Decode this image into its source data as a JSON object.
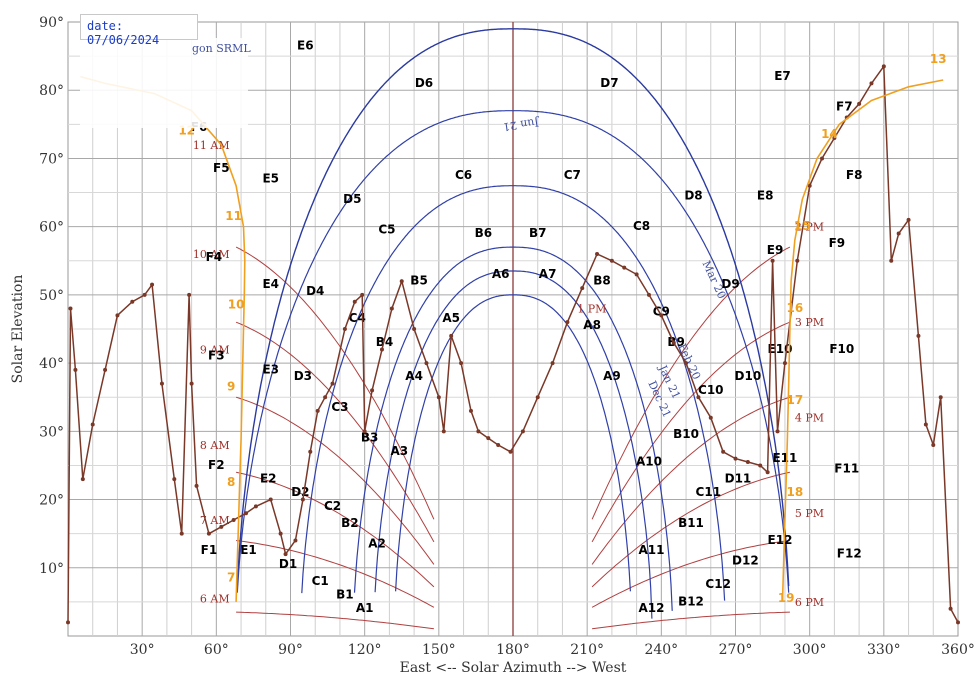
{
  "chart_data": {
    "type": "line",
    "title": "",
    "xlabel": "East <-- Solar Azimuth --> West",
    "ylabel": "Solar Elevation",
    "xlim": [
      0,
      360
    ],
    "ylim": [
      0,
      90
    ],
    "x_ticks": [
      "30°",
      "60°",
      "90°",
      "120°",
      "150°",
      "180°",
      "210°",
      "240°",
      "270°",
      "300°",
      "330°",
      "360°"
    ],
    "y_ticks": [
      "10°",
      "20°",
      "30°",
      "40°",
      "50°",
      "60°",
      "70°",
      "80°",
      "90°"
    ],
    "grid": true,
    "date_label": "date: 07/06/2024",
    "legend_fragment": "gon SRML",
    "sun_paths": [
      {
        "label": "Jun 21",
        "max_elevation": 77
      },
      {
        "label": "Mar 20",
        "max_elevation": 66
      },
      {
        "label": "Feb 20",
        "max_elevation": 57
      },
      {
        "label": "Jan 21",
        "max_elevation": 53.5
      },
      {
        "label": "Dec 21",
        "max_elevation": 50
      }
    ],
    "hour_labels_am": [
      "6 AM",
      "7 AM",
      "8 AM",
      "9 AM",
      "10 AM",
      "11 AM"
    ],
    "hour_labels_pm": [
      "1 PM",
      "2 PM",
      "3 PM",
      "4 PM",
      "5 PM",
      "6 PM"
    ],
    "sun_hours": [
      "7",
      "8",
      "9",
      "10",
      "11",
      "12",
      "13",
      "14",
      "15",
      "16",
      "17",
      "18",
      "19"
    ],
    "sun_track_points": [
      [
        68,
        5
      ],
      [
        68.5,
        11
      ],
      [
        69,
        17
      ],
      [
        69.5,
        23
      ],
      [
        70,
        29
      ],
      [
        70.5,
        37
      ],
      [
        71,
        45
      ],
      [
        71.3,
        50
      ],
      [
        71.5,
        55
      ],
      [
        71,
        60
      ],
      [
        68,
        66
      ],
      [
        62,
        72
      ],
      [
        50,
        77
      ],
      [
        35,
        79.5
      ],
      [
        15,
        81
      ],
      [
        5,
        82
      ],
      [
        289,
        5
      ],
      [
        289.5,
        11
      ],
      [
        290,
        17
      ],
      [
        290.5,
        23
      ],
      [
        291,
        29
      ],
      [
        291.5,
        37
      ],
      [
        292,
        45
      ],
      [
        292.5,
        52
      ],
      [
        294,
        58
      ],
      [
        297,
        64
      ],
      [
        303,
        70
      ],
      [
        312,
        75
      ],
      [
        325,
        78.5
      ],
      [
        340,
        80.5
      ],
      [
        354,
        81.5
      ]
    ],
    "horizon_profile": [
      [
        0,
        2
      ],
      [
        1,
        48
      ],
      [
        3,
        39
      ],
      [
        6,
        23
      ],
      [
        10,
        31
      ],
      [
        15,
        39
      ],
      [
        20,
        47
      ],
      [
        26,
        49
      ],
      [
        31,
        50
      ],
      [
        34,
        51.5
      ],
      [
        38,
        37
      ],
      [
        43,
        23
      ],
      [
        46,
        15
      ],
      [
        49,
        50
      ],
      [
        50,
        37
      ],
      [
        52,
        22
      ],
      [
        57,
        15
      ],
      [
        62,
        16
      ],
      [
        67,
        17
      ],
      [
        72,
        18
      ],
      [
        76,
        19
      ],
      [
        82,
        20
      ],
      [
        86,
        15
      ],
      [
        88,
        12
      ],
      [
        92,
        14
      ],
      [
        95,
        20
      ],
      [
        98,
        27
      ],
      [
        101,
        33
      ],
      [
        104,
        35
      ],
      [
        107,
        37
      ],
      [
        112,
        45
      ],
      [
        116,
        49
      ],
      [
        119,
        50
      ],
      [
        120,
        30
      ],
      [
        123,
        36
      ],
      [
        127,
        42
      ],
      [
        131,
        48
      ],
      [
        135,
        52
      ],
      [
        140,
        45
      ],
      [
        145,
        40
      ],
      [
        150,
        35
      ],
      [
        152,
        30
      ],
      [
        155,
        44
      ],
      [
        159,
        40
      ],
      [
        163,
        33
      ],
      [
        166,
        30
      ],
      [
        170,
        29
      ],
      [
        174,
        28
      ],
      [
        179,
        27
      ],
      [
        184,
        30
      ],
      [
        190,
        35
      ],
      [
        196,
        40
      ],
      [
        202,
        46
      ],
      [
        208,
        51
      ],
      [
        214,
        56
      ],
      [
        220,
        55
      ],
      [
        225,
        54
      ],
      [
        230,
        53
      ],
      [
        235,
        50
      ],
      [
        240,
        47
      ],
      [
        245,
        43
      ],
      [
        250,
        40
      ],
      [
        255,
        35
      ],
      [
        260,
        32
      ],
      [
        265,
        27
      ],
      [
        270,
        26
      ],
      [
        275,
        25.5
      ],
      [
        280,
        25
      ],
      [
        283,
        24
      ],
      [
        285,
        55
      ],
      [
        287,
        30
      ],
      [
        290,
        40
      ],
      [
        295,
        55
      ],
      [
        300,
        66
      ],
      [
        305,
        70
      ],
      [
        310,
        73
      ],
      [
        315,
        76
      ],
      [
        320,
        78
      ],
      [
        325,
        81
      ],
      [
        330,
        83.5
      ],
      [
        333,
        55
      ],
      [
        336,
        59
      ],
      [
        340,
        61
      ],
      [
        344,
        44
      ],
      [
        347,
        31
      ],
      [
        350,
        28
      ],
      [
        353,
        35
      ],
      [
        357,
        4
      ],
      [
        360,
        2
      ]
    ]
  },
  "zones": [
    {
      "label": "E6",
      "az": 96,
      "el": 86
    },
    {
      "label": "E7",
      "az": 289,
      "el": 81.5
    },
    {
      "label": "D6",
      "az": 144,
      "el": 80.5
    },
    {
      "label": "D7",
      "az": 219,
      "el": 80.5
    },
    {
      "label": "F6",
      "az": 53,
      "el": 74
    },
    {
      "label": "F7",
      "az": 314,
      "el": 77
    },
    {
      "label": "F5",
      "az": 62,
      "el": 68
    },
    {
      "label": "E5",
      "az": 82,
      "el": 66.5
    },
    {
      "label": "C6",
      "az": 160,
      "el": 67
    },
    {
      "label": "C7",
      "az": 204,
      "el": 67
    },
    {
      "label": "F8",
      "az": 318,
      "el": 67
    },
    {
      "label": "D5",
      "az": 115,
      "el": 63.5
    },
    {
      "label": "D8",
      "az": 253,
      "el": 64
    },
    {
      "label": "E8",
      "az": 282,
      "el": 64
    },
    {
      "label": "C5",
      "az": 129,
      "el": 59
    },
    {
      "label": "B6",
      "az": 168,
      "el": 58.5
    },
    {
      "label": "B7",
      "az": 190,
      "el": 58.5
    },
    {
      "label": "C8",
      "az": 232,
      "el": 59.5
    },
    {
      "label": "F4",
      "az": 59,
      "el": 55
    },
    {
      "label": "E9",
      "az": 286,
      "el": 56
    },
    {
      "label": "F9",
      "az": 311,
      "el": 57
    },
    {
      "label": "A6",
      "az": 175,
      "el": 52.5
    },
    {
      "label": "A7",
      "az": 194,
      "el": 52.5
    },
    {
      "label": "B8",
      "az": 216,
      "el": 51.5
    },
    {
      "label": "E4",
      "az": 82,
      "el": 51
    },
    {
      "label": "B5",
      "az": 142,
      "el": 51.5
    },
    {
      "label": "D9",
      "az": 268,
      "el": 51
    },
    {
      "label": "D4",
      "az": 100,
      "el": 50
    },
    {
      "label": "C4",
      "az": 117,
      "el": 46
    },
    {
      "label": "A5",
      "az": 155,
      "el": 46
    },
    {
      "label": "A8",
      "az": 212,
      "el": 45
    },
    {
      "label": "C9",
      "az": 240,
      "el": 47
    },
    {
      "label": "B4",
      "az": 128,
      "el": 42.5
    },
    {
      "label": "B9",
      "az": 246,
      "el": 42.5
    },
    {
      "label": "F3",
      "az": 60,
      "el": 40.5
    },
    {
      "label": "E10",
      "az": 288,
      "el": 41.5
    },
    {
      "label": "F10",
      "az": 313,
      "el": 41.5
    },
    {
      "label": "E3",
      "az": 82,
      "el": 38.5
    },
    {
      "label": "D3",
      "az": 95,
      "el": 37.5
    },
    {
      "label": "A4",
      "az": 140,
      "el": 37.5
    },
    {
      "label": "A9",
      "az": 220,
      "el": 37.5
    },
    {
      "label": "D10",
      "az": 275,
      "el": 37.5
    },
    {
      "label": "C10",
      "az": 260,
      "el": 35.5
    },
    {
      "label": "C3",
      "az": 110,
      "el": 33
    },
    {
      "label": "B3",
      "az": 122,
      "el": 28.5
    },
    {
      "label": "B10",
      "az": 250,
      "el": 29
    },
    {
      "label": "A3",
      "az": 134,
      "el": 26.5
    },
    {
      "label": "A10",
      "az": 235,
      "el": 25
    },
    {
      "label": "E11",
      "az": 290,
      "el": 25.5
    },
    {
      "label": "F2",
      "az": 60,
      "el": 24.5
    },
    {
      "label": "F11",
      "az": 315,
      "el": 24
    },
    {
      "label": "E2",
      "az": 81,
      "el": 22.5
    },
    {
      "label": "D11",
      "az": 271,
      "el": 22.5
    },
    {
      "label": "D2",
      "az": 94,
      "el": 20.5
    },
    {
      "label": "C11",
      "az": 259,
      "el": 20.5
    },
    {
      "label": "C2",
      "az": 107,
      "el": 18.5
    },
    {
      "label": "B2",
      "az": 114,
      "el": 16
    },
    {
      "label": "B11",
      "az": 252,
      "el": 16
    },
    {
      "label": "E12",
      "az": 288,
      "el": 13.5
    },
    {
      "label": "A2",
      "az": 125,
      "el": 13
    },
    {
      "label": "F1",
      "az": 57,
      "el": 12
    },
    {
      "label": "E1",
      "az": 73,
      "el": 12
    },
    {
      "label": "A11",
      "az": 236,
      "el": 12
    },
    {
      "label": "F12",
      "az": 316,
      "el": 11.5
    },
    {
      "label": "D1",
      "az": 89,
      "el": 10
    },
    {
      "label": "D12",
      "az": 274,
      "el": 10.5
    },
    {
      "label": "C1",
      "az": 102,
      "el": 7.5
    },
    {
      "label": "C12",
      "az": 263,
      "el": 7
    },
    {
      "label": "B1",
      "az": 112,
      "el": 5.5
    },
    {
      "label": "A1",
      "az": 120,
      "el": 3.5
    },
    {
      "label": "B12",
      "az": 252,
      "el": 4.5
    },
    {
      "label": "A12",
      "az": 236,
      "el": 3.5
    }
  ]
}
